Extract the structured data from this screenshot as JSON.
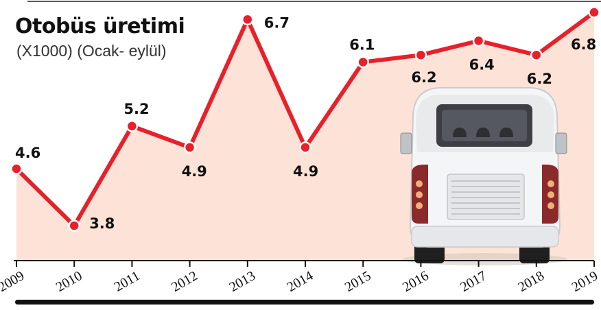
{
  "title": "Otobüs üretimi",
  "subtitle": "(X1000) (Ocak- eylül)",
  "colors": {
    "line": "#e8202a",
    "area": "#fde3d7",
    "axis": "#111111"
  },
  "chart_data": {
    "type": "area",
    "title": "Otobüs üretimi",
    "subtitle": "(X1000) (Ocak- eylül)",
    "xlabel": "",
    "ylabel": "",
    "categories": [
      "2009",
      "2010",
      "2011",
      "2012",
      "2013",
      "2014",
      "2015",
      "2016",
      "2017",
      "2018",
      "2019"
    ],
    "values": [
      4.6,
      3.8,
      5.2,
      4.9,
      6.7,
      4.9,
      6.1,
      6.2,
      6.4,
      6.2,
      6.8
    ],
    "value_labels": [
      "4.6",
      "3.8",
      "5.2",
      "4.9",
      "6.7",
      "4.9",
      "6.1",
      "6.2",
      "6.4",
      "6.2",
      "6.8"
    ],
    "ylim": [
      3.55,
      6.8
    ],
    "grid": false,
    "legend": "none"
  },
  "illustration": {
    "icon": "bus-rear-icon"
  }
}
